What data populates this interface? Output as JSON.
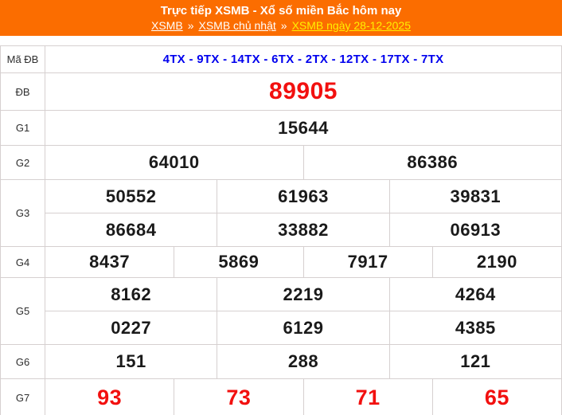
{
  "header": {
    "title": "Trực tiếp XSMB - Xổ số miền Bắc hôm nay",
    "breadcrumb": {
      "separator": "»",
      "links": [
        "XSMB",
        "XSMB chủ nhật",
        "XSMB ngày 28-12-2025"
      ]
    }
  },
  "results": {
    "ma_db": {
      "label": "Mã ĐB",
      "value": "4TX - 9TX - 14TX - 6TX - 2TX - 12TX - 17TX - 7TX"
    },
    "db": {
      "label": "ĐB",
      "value": "89905"
    },
    "g1": {
      "label": "G1",
      "value": "15644"
    },
    "g2": {
      "label": "G2",
      "values": [
        "64010",
        "86386"
      ]
    },
    "g3": {
      "label": "G3",
      "row1": [
        "50552",
        "61963",
        "39831"
      ],
      "row2": [
        "86684",
        "33882",
        "06913"
      ]
    },
    "g4": {
      "label": "G4",
      "values": [
        "8437",
        "5869",
        "7917",
        "2190"
      ]
    },
    "g5": {
      "label": "G5",
      "row1": [
        "8162",
        "2219",
        "4264"
      ],
      "row2": [
        "0227",
        "6129",
        "4385"
      ]
    },
    "g6": {
      "label": "G6",
      "values": [
        "151",
        "288",
        "121"
      ]
    },
    "g7": {
      "label": "G7",
      "values": [
        "93",
        "73",
        "71",
        "65"
      ]
    }
  },
  "colors": {
    "header_background": "#FB6D00",
    "title_text": "#FFFFFF",
    "current_link": "#FFF000",
    "code_text": "#0000EE",
    "special_prize_text": "#F2100F",
    "prize_text": "#1A1A1A",
    "table_border": "#D6D0D0"
  }
}
